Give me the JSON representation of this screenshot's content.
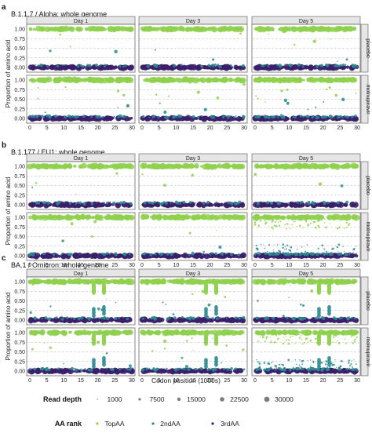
{
  "colors": {
    "top_aa": "#8fd14f",
    "second_aa": "#2c8a92",
    "third_aa": "#3b1f6b",
    "panel_bg": "#ffffff",
    "grid": "#b8b8b8",
    "strip_bg": "#e6e6e6",
    "border": "#555555"
  },
  "chart_data": [
    {
      "type": "scatter",
      "panel_letter": "a",
      "title": "B.1.1.7 / Alpha: whole genome",
      "columns": [
        "Day 1",
        "Day 3",
        "Day 5"
      ],
      "rows": [
        "placebo",
        "molnupiravir"
      ],
      "xlabel": "Codon position (1000s)",
      "ylabel": "Proportion of amino acid",
      "xlim": [
        0,
        30
      ],
      "ylim": [
        0,
        1
      ],
      "xticks": [
        "0",
        "5",
        "10",
        "15",
        "20",
        "25",
        "30"
      ],
      "yticks": [
        "0.00",
        "0.25",
        "0.50",
        "0.75",
        "1.00"
      ],
      "grid": "dashed horizontal at 0.25, 0.50, 0.75",
      "series": [
        {
          "name": "TopAA",
          "y": 1.0
        },
        {
          "name": "2ndAA",
          "y": 0.0
        },
        {
          "name": "3rdAA",
          "y": 0.0
        }
      ],
      "scatter_level": {
        "placebo": [
          1,
          1,
          2
        ],
        "molnupiravir": [
          2,
          2,
          4
        ]
      }
    },
    {
      "type": "scatter",
      "panel_letter": "b",
      "title": "B.1.177 / EU1: whole genome",
      "columns": [
        "Day 1",
        "Day 3",
        "Day 5"
      ],
      "rows": [
        "placebo",
        "molnupiravir"
      ],
      "xlabel": "Codon position (1000s)",
      "ylabel": "Proportion of amino acid",
      "xlim": [
        0,
        30
      ],
      "ylim": [
        0,
        1
      ],
      "xticks": [
        "0",
        "5",
        "10",
        "15",
        "20",
        "25",
        "30"
      ],
      "yticks": [
        "0.00",
        "0.25",
        "0.50",
        "0.75",
        "1.00"
      ],
      "grid": "dashed horizontal at 0.25, 0.50, 0.75",
      "series": [
        {
          "name": "TopAA",
          "y": 1.0
        },
        {
          "name": "2ndAA",
          "y": 0.0
        },
        {
          "name": "3rdAA",
          "y": 0.0
        }
      ],
      "scatter_level": {
        "placebo": [
          1,
          1,
          1
        ],
        "molnupiravir": [
          1,
          1,
          6
        ]
      }
    },
    {
      "type": "scatter",
      "panel_letter": "c",
      "title": "BA.1 / Omicron: whole genome",
      "columns": [
        "Day 1",
        "Day 3",
        "Day 5"
      ],
      "rows": [
        "placebo",
        "molnupiravir"
      ],
      "xlabel": "Codon position (1000s)",
      "ylabel": "Proportion of amino acid",
      "xlim": [
        0,
        30
      ],
      "ylim": [
        0,
        1
      ],
      "xticks": [
        "0",
        "5",
        "10",
        "15",
        "20",
        "25",
        "30"
      ],
      "yticks": [
        "0.00",
        "0.25",
        "0.50",
        "0.75",
        "1.00"
      ],
      "grid": "dashed horizontal at 0.25, 0.50, 0.75",
      "series": [
        {
          "name": "TopAA",
          "y": 1.0
        },
        {
          "name": "2ndAA",
          "y": 0.0
        },
        {
          "name": "3rdAA",
          "y": 0.0
        }
      ],
      "scatter_level": {
        "placebo": [
          2,
          2,
          2
        ],
        "molnupiravir": [
          2,
          3,
          6
        ]
      },
      "omicron_clusters": [
        18.8,
        21.8
      ]
    }
  ],
  "legend": {
    "read_depth_title": "Read depth",
    "read_depth_values": [
      "1000",
      "7500",
      "15000",
      "22500",
      "30000"
    ],
    "aa_rank_title": "AA rank",
    "aa_rank_values": [
      "TopAA",
      "2ndAA",
      "3rdAA"
    ]
  }
}
